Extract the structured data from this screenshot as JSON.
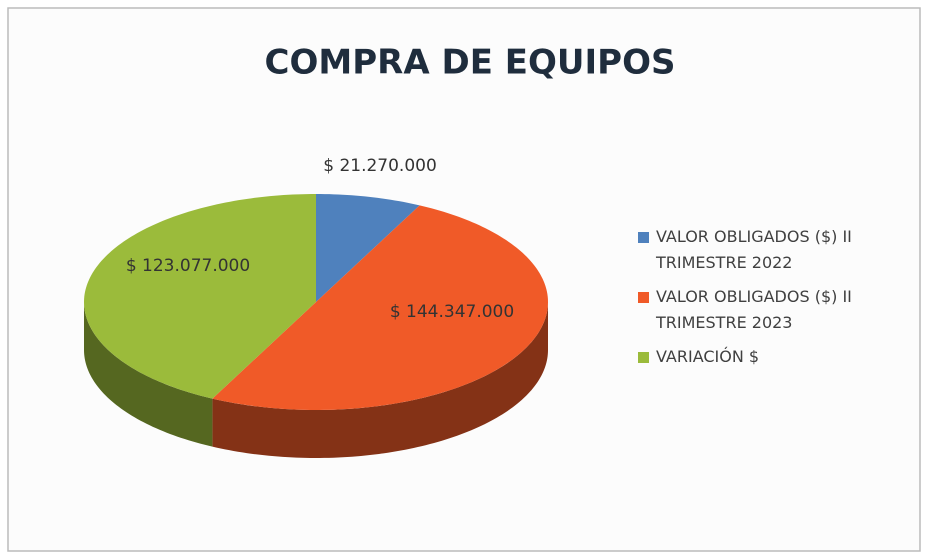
{
  "chart_data": {
    "type": "pie",
    "title": "COMPRA DE EQUIPOS",
    "categories": [
      "VALOR OBLIGADOS ($) II TRIMESTRE 2022",
      "VALOR OBLIGADOS ($) II TRIMESTRE 2023",
      "VARIACIÓN $"
    ],
    "values": [
      21270000,
      144347000,
      123077000
    ],
    "value_labels": [
      "$ 21.270.000",
      "$ 144.347.000",
      "$ 123.077.000"
    ],
    "colors": [
      "#4f81bd",
      "#f05a28",
      "#9bbb3b"
    ],
    "legend": "right"
  }
}
